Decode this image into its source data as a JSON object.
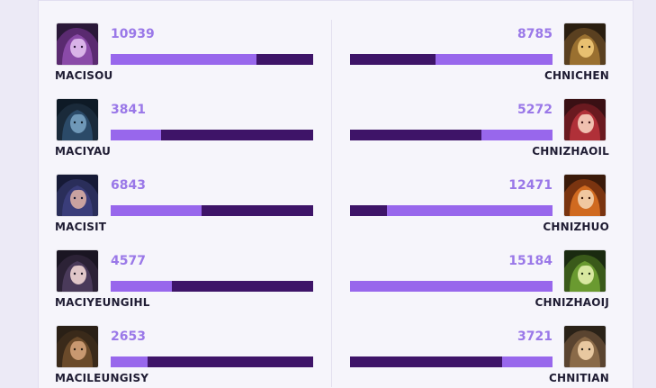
{
  "left_team": [
    {
      "name": "MACISOU",
      "value": "10939",
      "fill_fraction": 0.72,
      "avatar": "purple-haired-champion"
    },
    {
      "name": "MACIYAU",
      "value": "3841",
      "fill_fraction": 0.25,
      "avatar": "dark-helmet-champion"
    },
    {
      "name": "MACISIT",
      "value": "6843",
      "fill_fraction": 0.45,
      "avatar": "blue-haired-champion"
    },
    {
      "name": "MACIYEUNGIHL",
      "value": "4577",
      "fill_fraction": 0.3,
      "avatar": "dark-haired-champion"
    },
    {
      "name": "MACILEUNGISY",
      "value": "2653",
      "fill_fraction": 0.18,
      "avatar": "brown-haired-champion"
    }
  ],
  "right_team": [
    {
      "name": "CHNICHEN",
      "value": "8785",
      "fill_fraction": 0.58,
      "avatar": "golden-warrior-champion"
    },
    {
      "name": "CHNIZHAOIL",
      "value": "5272",
      "fill_fraction": 0.35,
      "avatar": "red-haired-champion"
    },
    {
      "name": "CHNIZHUO",
      "value": "12471",
      "fill_fraction": 0.82,
      "avatar": "orange-haired-champion"
    },
    {
      "name": "CHNIZHAOIJ",
      "value": "15184",
      "fill_fraction": 1.0,
      "avatar": "green-tinted-champion"
    },
    {
      "name": "CHNITIAN",
      "value": "3721",
      "fill_fraction": 0.25,
      "avatar": "tan-champion"
    }
  ],
  "colors": {
    "bar_track": "#3e1468",
    "bar_fill": "#9867ec",
    "value_text": "#9a78e8",
    "name_text": "#1f1c33"
  }
}
